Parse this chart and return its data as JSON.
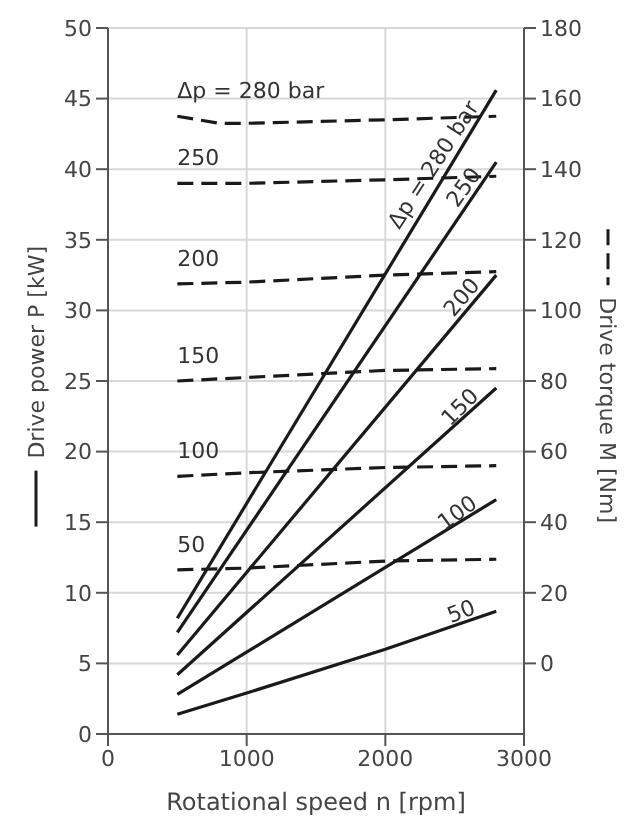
{
  "chart_data": {
    "type": "line",
    "xlabel": "Rotational speed n [rpm]",
    "ylabel": "Drive power P [kW]",
    "y2label": "Drive torque M [Nm]",
    "xlim": [
      0,
      3000
    ],
    "xticks": [
      0,
      1000,
      2000,
      3000
    ],
    "ylim": [
      0,
      50
    ],
    "yticks": [
      0,
      5,
      10,
      15,
      20,
      25,
      30,
      35,
      40,
      45,
      50
    ],
    "y2lim": [
      -20,
      180
    ],
    "y2ticks": [
      0,
      20,
      40,
      60,
      80,
      100,
      120,
      140,
      160,
      180
    ],
    "grid": true,
    "legend": false,
    "marker": "none",
    "series": [
      {
        "name": "Δp = 280 bar",
        "color": "#1a1a1a",
        "line_style": "solid",
        "x": [
          500,
          2800
        ],
        "values": [
          8.2,
          45.6
        ]
      },
      {
        "name": "250",
        "color": "#1a1a1a",
        "line_style": "solid",
        "x": [
          500,
          2800
        ],
        "values": [
          7.2,
          40.5
        ]
      },
      {
        "name": "200",
        "color": "#1a1a1a",
        "line_style": "solid",
        "x": [
          500,
          2800
        ],
        "values": [
          5.6,
          32.5
        ]
      },
      {
        "name": "150",
        "color": "#1a1a1a",
        "line_style": "solid",
        "x": [
          500,
          2800
        ],
        "values": [
          4.2,
          24.5
        ]
      },
      {
        "name": "100",
        "color": "#1a1a1a",
        "line_style": "solid",
        "x": [
          500,
          2800
        ],
        "values": [
          2.8,
          16.6
        ]
      },
      {
        "name": "50",
        "color": "#1a1a1a",
        "line_style": "solid",
        "x": [
          500,
          1000,
          2000,
          2800
        ],
        "values": [
          1.4,
          2.9,
          6.0,
          8.7
        ]
      },
      {
        "name": "Δp = 280 bar",
        "color": "#1a1a1a",
        "line_style": "dashed",
        "axis": "y2",
        "x": [
          500,
          800,
          1000,
          2000,
          2800
        ],
        "values": [
          155,
          153,
          153,
          154,
          155
        ]
      },
      {
        "name": "250",
        "color": "#1a1a1a",
        "line_style": "dashed",
        "axis": "y2",
        "x": [
          500,
          1000,
          2000,
          2800
        ],
        "values": [
          136,
          136,
          137,
          138
        ]
      },
      {
        "name": "200",
        "color": "#1a1a1a",
        "line_style": "dashed",
        "axis": "y2",
        "x": [
          500,
          1000,
          2000,
          2800
        ],
        "values": [
          107.5,
          108,
          110,
          111
        ]
      },
      {
        "name": "150",
        "color": "#1a1a1a",
        "line_style": "dashed",
        "axis": "y2",
        "x": [
          500,
          1000,
          2000,
          2800
        ],
        "values": [
          80,
          81,
          83,
          83.5
        ]
      },
      {
        "name": "100",
        "color": "#1a1a1a",
        "line_style": "dashed",
        "axis": "y2",
        "x": [
          500,
          1000,
          2000,
          2800
        ],
        "values": [
          53,
          54,
          55.5,
          56
        ]
      },
      {
        "name": "50",
        "color": "#1a1a1a",
        "line_style": "dashed",
        "axis": "y2",
        "x": [
          500,
          1000,
          2000,
          2800
        ],
        "values": [
          26.5,
          27,
          29,
          29.5
        ]
      }
    ]
  }
}
